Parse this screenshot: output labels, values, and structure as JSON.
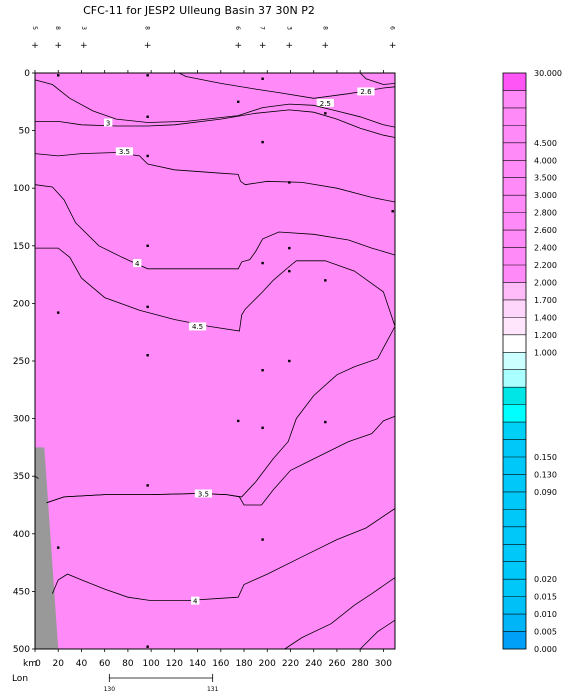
{
  "chart_data": {
    "type": "heatmap",
    "title": "CFC-11 for JESP2 Ulleung Basin 37 30N P2",
    "x_axis_label": "km",
    "x_ticks": [
      0,
      20,
      40,
      60,
      80,
      100,
      120,
      140,
      160,
      180,
      200,
      220,
      240,
      260,
      280,
      300
    ],
    "x_range": [
      0,
      310
    ],
    "y_ticks": [
      0,
      50,
      100,
      150,
      200,
      250,
      300,
      350,
      400,
      450,
      500
    ],
    "y_range": [
      0,
      500
    ],
    "y_reversed": true,
    "lon_label": "Lon",
    "lon_ticks": [
      {
        "label": "130",
        "km": 64
      },
      {
        "label": "131",
        "km": 153
      }
    ],
    "station_ids": [
      {
        "km": 0,
        "label": "5"
      },
      {
        "km": 20,
        "label": "8"
      },
      {
        "km": 42,
        "label": "3"
      },
      {
        "km": 97,
        "label": "8"
      },
      {
        "km": 175,
        "label": "6"
      },
      {
        "km": 196,
        "label": "7"
      },
      {
        "km": 219,
        "label": "3"
      },
      {
        "km": 250,
        "label": "8"
      },
      {
        "km": 308,
        "label": "6"
      }
    ],
    "station_km": [
      0,
      20,
      42,
      97,
      175,
      196,
      219,
      250,
      308
    ],
    "sample_points": [
      {
        "x": 20,
        "y": 2
      },
      {
        "x": 97,
        "y": 2
      },
      {
        "x": 196,
        "y": 5
      },
      {
        "x": 175,
        "y": 25
      },
      {
        "x": 250,
        "y": 35
      },
      {
        "x": 97,
        "y": 38
      },
      {
        "x": 196,
        "y": 60
      },
      {
        "x": 97,
        "y": 72
      },
      {
        "x": 219,
        "y": 95
      },
      {
        "x": 308,
        "y": 120
      },
      {
        "x": 97,
        "y": 150
      },
      {
        "x": 219,
        "y": 152
      },
      {
        "x": 196,
        "y": 165
      },
      {
        "x": 219,
        "y": 172
      },
      {
        "x": 250,
        "y": 180
      },
      {
        "x": 97,
        "y": 203
      },
      {
        "x": 20,
        "y": 208
      },
      {
        "x": 97,
        "y": 245
      },
      {
        "x": 219,
        "y": 250
      },
      {
        "x": 196,
        "y": 258
      },
      {
        "x": 175,
        "y": 302
      },
      {
        "x": 250,
        "y": 303
      },
      {
        "x": 196,
        "y": 308
      },
      {
        "x": 97,
        "y": 358
      },
      {
        "x": 196,
        "y": 405
      },
      {
        "x": 20,
        "y": 412
      },
      {
        "x": 97,
        "y": 498
      }
    ],
    "contours": [
      {
        "label": "2.5",
        "label_at": {
          "x": 250,
          "y": 26
        },
        "points": [
          [
            124,
            0
          ],
          [
            130,
            3
          ],
          [
            160,
            9
          ],
          [
            190,
            14
          ],
          [
            210,
            17
          ],
          [
            240,
            22
          ],
          [
            270,
            18
          ],
          [
            300,
            13
          ],
          [
            310,
            12
          ]
        ]
      },
      {
        "label": "2.6",
        "label_at": {
          "x": 285,
          "y": 16
        },
        "points": [
          [
            280,
            0
          ],
          [
            285,
            5
          ],
          [
            300,
            10
          ],
          [
            310,
            9
          ]
        ]
      },
      {
        "label": "",
        "label_at": null,
        "points": [
          [
            0,
            6
          ],
          [
            15,
            10
          ],
          [
            30,
            22
          ],
          [
            50,
            33
          ],
          [
            70,
            40
          ],
          [
            97,
            43
          ],
          [
            130,
            42
          ],
          [
            175,
            37
          ],
          [
            196,
            30
          ],
          [
            219,
            27
          ],
          [
            240,
            28
          ],
          [
            260,
            33
          ],
          [
            280,
            38
          ],
          [
            300,
            45
          ],
          [
            310,
            47
          ]
        ]
      },
      {
        "label": "3",
        "label_at": {
          "x": 63,
          "y": 43
        },
        "points": [
          [
            0,
            42
          ],
          [
            20,
            42
          ],
          [
            40,
            45
          ],
          [
            70,
            46
          ],
          [
            97,
            46
          ],
          [
            120,
            45
          ],
          [
            160,
            40
          ],
          [
            190,
            35
          ],
          [
            219,
            32
          ],
          [
            240,
            34
          ],
          [
            260,
            40
          ],
          [
            280,
            48
          ],
          [
            300,
            54
          ],
          [
            310,
            56
          ]
        ]
      },
      {
        "label": "3.5",
        "label_at": {
          "x": 77,
          "y": 68
        },
        "points": [
          [
            0,
            70
          ],
          [
            20,
            72
          ],
          [
            40,
            70
          ],
          [
            70,
            69
          ],
          [
            90,
            72
          ],
          [
            97,
            79
          ],
          [
            120,
            84
          ],
          [
            160,
            87
          ],
          [
            175,
            88
          ],
          [
            177,
            94
          ],
          [
            181,
            97
          ],
          [
            200,
            94
          ],
          [
            230,
            95
          ],
          [
            260,
            100
          ],
          [
            290,
            108
          ],
          [
            310,
            112
          ]
        ]
      },
      {
        "label": "4",
        "label_at": {
          "x": 88,
          "y": 165
        },
        "points": [
          [
            0,
            97
          ],
          [
            15,
            99
          ],
          [
            25,
            110
          ],
          [
            35,
            130
          ],
          [
            55,
            150
          ],
          [
            75,
            160
          ],
          [
            97,
            170
          ],
          [
            140,
            170
          ],
          [
            175,
            170
          ],
          [
            178,
            164
          ],
          [
            185,
            162
          ],
          [
            190,
            155
          ],
          [
            196,
            144
          ],
          [
            210,
            138
          ],
          [
            240,
            140
          ],
          [
            270,
            145
          ],
          [
            290,
            152
          ],
          [
            310,
            158
          ]
        ]
      },
      {
        "label": "4.5",
        "label_at": {
          "x": 140,
          "y": 220
        },
        "points": [
          [
            0,
            152
          ],
          [
            20,
            152
          ],
          [
            30,
            160
          ],
          [
            40,
            178
          ],
          [
            60,
            195
          ],
          [
            90,
            206
          ],
          [
            120,
            214
          ],
          [
            150,
            220
          ],
          [
            176,
            224
          ],
          [
            178,
            210
          ],
          [
            181,
            205
          ],
          [
            196,
            190
          ],
          [
            205,
            180
          ],
          [
            212,
            174
          ],
          [
            219,
            168
          ],
          [
            225,
            163
          ],
          [
            250,
            163
          ],
          [
            275,
            172
          ],
          [
            300,
            190
          ],
          [
            310,
            220
          ],
          [
            295,
            248
          ],
          [
            275,
            255
          ],
          [
            260,
            262
          ],
          [
            240,
            280
          ],
          [
            225,
            300
          ],
          [
            218,
            320
          ],
          [
            205,
            335
          ],
          [
            190,
            355
          ],
          [
            178,
            368
          ],
          [
            165,
            366
          ],
          [
            140,
            365
          ],
          [
            100,
            366
          ],
          [
            60,
            366
          ],
          [
            25,
            368
          ],
          [
            10,
            373
          ]
        ]
      },
      {
        "label": "3.5",
        "label_at": {
          "x": 145,
          "y": 365
        },
        "points": [
          [
            10,
            373
          ],
          [
            25,
            368
          ],
          [
            60,
            366
          ],
          [
            100,
            366
          ],
          [
            140,
            365
          ],
          [
            165,
            366
          ],
          [
            176,
            368
          ],
          [
            180,
            375
          ],
          [
            195,
            375
          ],
          [
            205,
            362
          ],
          [
            220,
            345
          ],
          [
            240,
            335
          ],
          [
            270,
            320
          ],
          [
            290,
            313
          ],
          [
            300,
            302
          ],
          [
            310,
            298
          ]
        ]
      },
      {
        "label": "4",
        "label_at": {
          "x": 138,
          "y": 458
        },
        "points": [
          [
            15,
            452
          ],
          [
            20,
            440
          ],
          [
            28,
            435
          ],
          [
            40,
            440
          ],
          [
            60,
            448
          ],
          [
            80,
            455
          ],
          [
            100,
            458
          ],
          [
            130,
            458
          ],
          [
            160,
            456
          ],
          [
            175,
            455
          ],
          [
            180,
            444
          ],
          [
            200,
            435
          ],
          [
            230,
            420
          ],
          [
            260,
            405
          ],
          [
            285,
            395
          ],
          [
            310,
            378
          ]
        ]
      },
      {
        "label": "",
        "label_at": null,
        "points": [
          [
            215,
            500
          ],
          [
            230,
            490
          ],
          [
            255,
            478
          ],
          [
            275,
            462
          ],
          [
            290,
            452
          ],
          [
            310,
            438
          ]
        ]
      },
      {
        "label": "",
        "label_at": null,
        "points": [
          [
            280,
            500
          ],
          [
            295,
            485
          ],
          [
            310,
            475
          ]
        ]
      },
      {
        "label": "",
        "label_at": null,
        "points": [
          [
            0,
            350
          ],
          [
            3,
            352
          ]
        ]
      }
    ],
    "bottom_polygon_km": [
      [
        0,
        325
      ],
      [
        8,
        325
      ],
      [
        20,
        500
      ],
      [
        0,
        500
      ]
    ],
    "colorbar": {
      "top_label": "30.000",
      "labels": [
        "30.000",
        "4.500",
        "4.000",
        "3.500",
        "3.000",
        "2.800",
        "2.600",
        "2.400",
        "2.200",
        "2.000",
        "1.700",
        "1.400",
        "1.200",
        "1.000",
        "0.150",
        "0.130",
        "0.090",
        "0.020",
        "0.015",
        "0.010",
        "0.005",
        "0.000"
      ],
      "bands": [
        {
          "color": "#ff55f6",
          "label": ""
        },
        {
          "color": "#ff8af8",
          "label": ""
        },
        {
          "color": "#ff8af8",
          "label": ""
        },
        {
          "color": "#ff8af8",
          "label": "4.500"
        },
        {
          "color": "#ff8af8",
          "label": "4.000"
        },
        {
          "color": "#ff8af8",
          "label": "3.500"
        },
        {
          "color": "#ff8af8",
          "label": "3.000"
        },
        {
          "color": "#ff8af8",
          "label": "2.800"
        },
        {
          "color": "#ff8af8",
          "label": "2.600"
        },
        {
          "color": "#ff8af8",
          "label": "2.400"
        },
        {
          "color": "#ff8af8",
          "label": "2.200"
        },
        {
          "color": "#ff8af8",
          "label": "2.000"
        },
        {
          "color": "#ffbcf9",
          "label": "1.700"
        },
        {
          "color": "#ffd6fb",
          "label": "1.400"
        },
        {
          "color": "#ffe6fc",
          "label": "1.200"
        },
        {
          "color": "#ffffff",
          "label": "1.000"
        },
        {
          "color": "#ccffff",
          "label": ""
        },
        {
          "color": "#aaffff",
          "label": ""
        },
        {
          "color": "#00e6e6",
          "label": ""
        },
        {
          "color": "#00ffff",
          "label": ""
        },
        {
          "color": "#00d0f6",
          "label": ""
        },
        {
          "color": "#00c8f8",
          "label": "0.150"
        },
        {
          "color": "#00c8f8",
          "label": "0.130"
        },
        {
          "color": "#00c8f8",
          "label": "0.090"
        },
        {
          "color": "#00c8f8",
          "label": ""
        },
        {
          "color": "#00c8f8",
          "label": ""
        },
        {
          "color": "#00c8f8",
          "label": ""
        },
        {
          "color": "#00c8f8",
          "label": ""
        },
        {
          "color": "#00c8f8",
          "label": "0.020"
        },
        {
          "color": "#00c8f8",
          "label": "0.015"
        },
        {
          "color": "#00c0f8",
          "label": "0.010"
        },
        {
          "color": "#00b4f8",
          "label": "0.005"
        },
        {
          "color": "#00a0f8",
          "label": "0.000"
        }
      ]
    },
    "colors": {
      "field": "#ff8af8",
      "bottom": "#999999",
      "contour": "#000000"
    }
  }
}
